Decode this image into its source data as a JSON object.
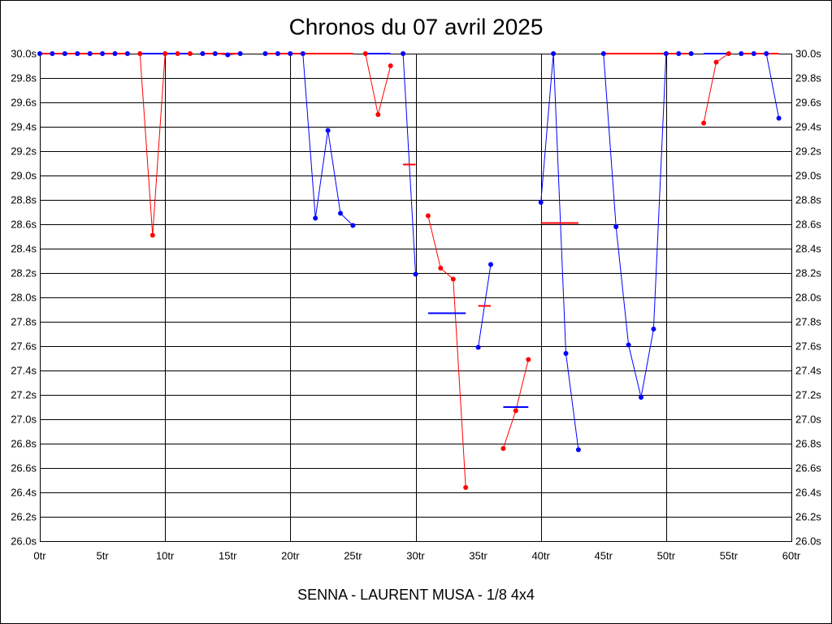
{
  "chart_data": {
    "type": "line",
    "title": "Chronos du 07 avril 2025",
    "footer": "SENNA - LAURENT MUSA - 1/8 4x4",
    "xlabel": "",
    "ylabel": "",
    "xlim": [
      0,
      60
    ],
    "ylim": [
      26.0,
      30.0
    ],
    "x_ticks": {
      "values": [
        0,
        5,
        10,
        15,
        20,
        25,
        30,
        35,
        40,
        45,
        50,
        55,
        60
      ],
      "labels": [
        "0tr",
        "5tr",
        "10tr",
        "15tr",
        "20tr",
        "25tr",
        "30tr",
        "35tr",
        "40tr",
        "45tr",
        "50tr",
        "55tr",
        "60tr"
      ]
    },
    "y_ticks": {
      "values": [
        26.0,
        26.2,
        26.4,
        26.6,
        26.8,
        27.0,
        27.2,
        27.4,
        27.6,
        27.8,
        28.0,
        28.2,
        28.4,
        28.6,
        28.8,
        29.0,
        29.2,
        29.4,
        29.6,
        29.8,
        30.0
      ],
      "labels": [
        "26.0s",
        "26.2s",
        "26.4s",
        "26.6s",
        "26.8s",
        "27.0s",
        "27.2s",
        "27.4s",
        "27.6s",
        "27.8s",
        "28.0s",
        "28.2s",
        "28.4s",
        "28.6s",
        "28.8s",
        "29.0s",
        "29.2s",
        "29.4s",
        "29.6s",
        "29.8s",
        "30.0s"
      ]
    },
    "y_tick_label_sides": [
      "left",
      "right"
    ],
    "grid": true,
    "x_grid": [
      10,
      20,
      30,
      40,
      50
    ],
    "colors": {
      "red": "#ff0000",
      "blue": "#0000ff",
      "grid": "#000000"
    },
    "stints": [
      {
        "color": "blue",
        "avg_color": "red",
        "laps": [
          0,
          1,
          2,
          3,
          4,
          5,
          6,
          7
        ],
        "values": [
          30.0,
          30.0,
          30.0,
          30.0,
          30.0,
          30.0,
          30.0,
          30.0
        ],
        "avg": 30.0
      },
      {
        "color": "red",
        "avg_color": "blue",
        "laps": [
          8,
          9,
          10,
          11,
          12
        ],
        "values": [
          30.0,
          28.51,
          30.0,
          30.0,
          30.0
        ],
        "avg": 30.0
      },
      {
        "color": "blue",
        "avg_color": "red",
        "laps": [
          13,
          14,
          15,
          16
        ],
        "values": [
          30.0,
          30.0,
          29.99,
          30.0
        ],
        "avg": 30.0
      },
      {
        "color": "blue",
        "avg_color": "red",
        "laps": [
          18,
          19,
          20,
          21,
          22,
          23,
          24,
          25
        ],
        "values": [
          30.0,
          30.0,
          30.0,
          30.0,
          28.65,
          29.37,
          28.69,
          28.59
        ],
        "avg": 30.0
      },
      {
        "color": "red",
        "avg_color": "blue",
        "laps": [
          26,
          27,
          28
        ],
        "values": [
          30.0,
          29.5,
          29.9
        ],
        "avg": 30.0
      },
      {
        "color": "blue",
        "avg_color": "red",
        "laps": [
          29,
          30
        ],
        "values": [
          30.0,
          28.19
        ],
        "avg": 29.09
      },
      {
        "color": "red",
        "avg_color": "blue",
        "laps": [
          31,
          32,
          33,
          34
        ],
        "values": [
          28.67,
          28.24,
          28.15,
          26.44
        ],
        "avg": 27.87
      },
      {
        "color": "blue",
        "avg_color": "red",
        "laps": [
          35,
          36
        ],
        "values": [
          27.59,
          28.27
        ],
        "avg": 27.93
      },
      {
        "color": "red",
        "avg_color": "blue",
        "laps": [
          37,
          38,
          39
        ],
        "values": [
          26.76,
          27.07,
          27.49
        ],
        "avg": 27.1
      },
      {
        "color": "blue",
        "avg_color": "red",
        "laps": [
          40,
          41,
          42,
          43
        ],
        "values": [
          28.78,
          30.0,
          27.54,
          26.75
        ],
        "avg": 28.61
      },
      {
        "color": "blue",
        "avg_color": "red",
        "laps": [
          45,
          46,
          47,
          48,
          49,
          50,
          51,
          52
        ],
        "values": [
          30.0,
          28.58,
          27.61,
          27.18,
          27.74,
          30.0,
          30.0,
          30.0
        ],
        "avg": 30.0
      },
      {
        "color": "red",
        "avg_color": "blue",
        "laps": [
          53,
          54,
          55
        ],
        "values": [
          29.43,
          29.93,
          30.0
        ],
        "avg": 30.0
      },
      {
        "color": "blue",
        "avg_color": "red",
        "laps": [
          56,
          57,
          58,
          59
        ],
        "values": [
          30.0,
          30.0,
          30.0,
          29.47
        ],
        "avg": 30.0
      }
    ]
  }
}
